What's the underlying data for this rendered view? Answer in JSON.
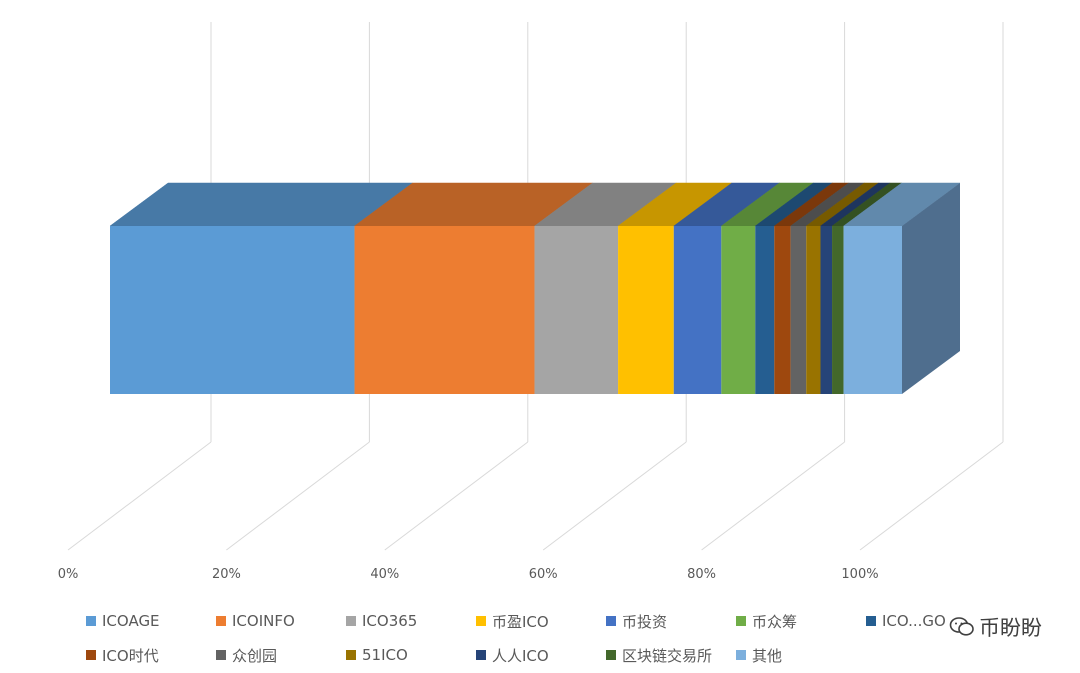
{
  "chart_data": {
    "type": "bar",
    "orientation": "horizontal",
    "stacked": "percent",
    "three_d": true,
    "xlim": [
      0,
      100
    ],
    "x_ticks": [
      "0%",
      "20%",
      "40%",
      "60%",
      "80%",
      "100%"
    ],
    "grid": true,
    "legend_position": "bottom",
    "series": [
      {
        "name": "ICOAGE",
        "value": 36.0,
        "color": "#5B9BD5"
      },
      {
        "name": "ICOINFO",
        "value": 26.5,
        "color": "#ED7D31"
      },
      {
        "name": "ICO365",
        "value": 12.3,
        "color": "#A5A5A5"
      },
      {
        "name": "币盈ICO",
        "value": 8.2,
        "color": "#FFC000"
      },
      {
        "name": "币投资",
        "value": 7.0,
        "color": "#4472C4"
      },
      {
        "name": "币众筹",
        "value": 5.0,
        "color": "#70AD47"
      },
      {
        "name": "ICO...GO",
        "value": 2.8,
        "color": "#255E91"
      },
      {
        "name": "ICO时代",
        "value": 2.4,
        "color": "#9E480E"
      },
      {
        "name": "众创园",
        "value": 2.3,
        "color": "#636363"
      },
      {
        "name": "51ICO",
        "value": 2.1,
        "color": "#997300"
      },
      {
        "name": "人人ICO",
        "value": 1.7,
        "color": "#264478"
      },
      {
        "name": "区块链交易所",
        "value": 1.7,
        "color": "#43682B"
      },
      {
        "name": "其他",
        "value": 8.6,
        "color": "#7CAFDD"
      }
    ]
  },
  "watermark": {
    "text": "币盼盼"
  }
}
